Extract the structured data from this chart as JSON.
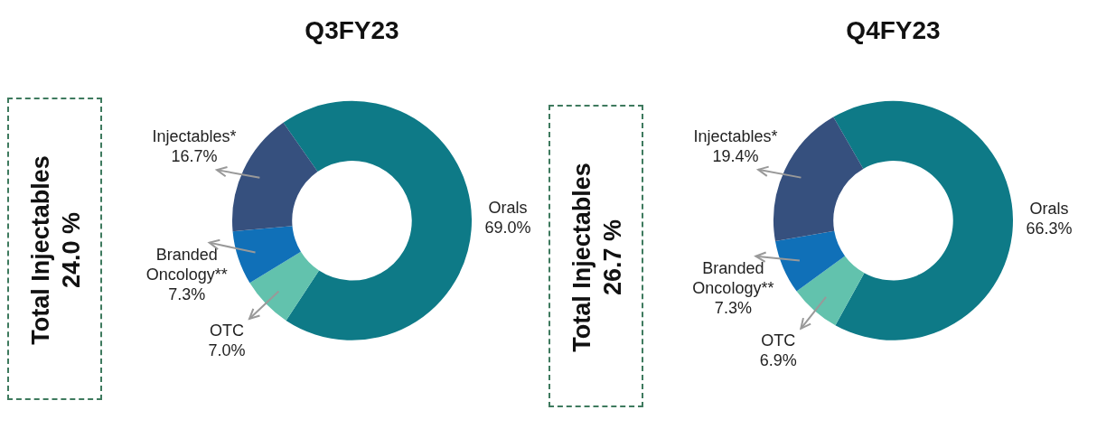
{
  "chart_data": [
    {
      "type": "donut",
      "title": "Q3FY23",
      "categories": [
        "Orals",
        "OTC",
        "Branded Oncology**",
        "Injectables*"
      ],
      "values": [
        69.0,
        7.0,
        7.3,
        16.7
      ],
      "value_labels": [
        "69.0%",
        "7.0%",
        "7.3%",
        "16.7%"
      ],
      "colors": [
        "#0e7a87",
        "#62c2ad",
        "#1070b8",
        "#36507e"
      ],
      "annotations": [
        "Total Injectables 24.0 %"
      ],
      "legend": false
    },
    {
      "type": "donut",
      "title": "Q4FY23",
      "categories": [
        "Orals",
        "OTC",
        "Branded Oncology**",
        "Injectables*"
      ],
      "values": [
        66.3,
        6.9,
        7.3,
        19.4
      ],
      "value_labels": [
        "66.3%",
        "6.9%",
        "7.3%",
        "19.4%"
      ],
      "colors": [
        "#0e7a87",
        "#62c2ad",
        "#1070b8",
        "#36507e"
      ],
      "annotations": [
        "Total Injectables 26.7 %"
      ],
      "legend": false
    }
  ]
}
